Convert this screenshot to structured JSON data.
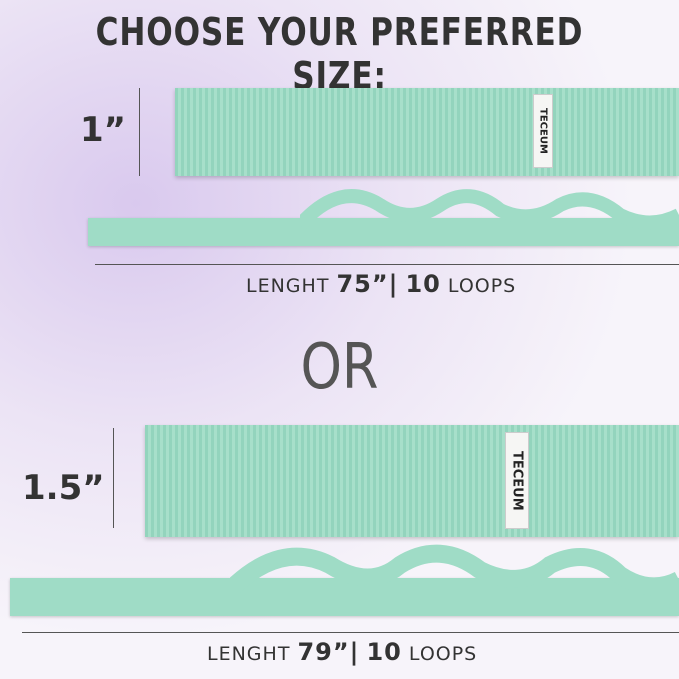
{
  "title": "CHOOSE YOUR PREFERRED SIZE:",
  "option1": {
    "width": "1”",
    "length_label": "LENGHT",
    "length": "75”",
    "separator": "|",
    "loops_count": "10",
    "loops_label": "LOOPS",
    "brand_tag": "TECEUM"
  },
  "or_label": "OR",
  "option2": {
    "width": "1.5”",
    "length_label": "LENGHT",
    "length": "79”",
    "separator": "|",
    "loops_count": "10",
    "loops_label": "LOOPS",
    "brand_tag": "TECEUM"
  },
  "colors": {
    "strap": "#9fd8c2",
    "text": "#333333"
  }
}
